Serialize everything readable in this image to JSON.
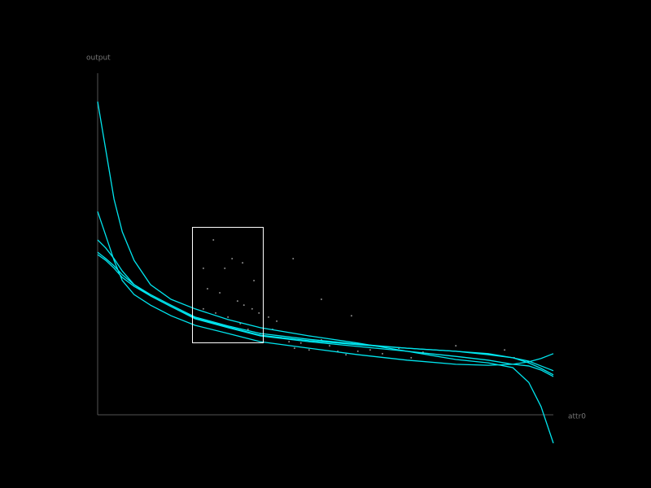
{
  "chart_data": [
    {
      "type": "scatter",
      "x_label": "attr0",
      "y_label": "output",
      "color": "#8a8a8a",
      "xlim": [
        0,
        1
      ],
      "ylim": [
        -0.1,
        1
      ],
      "x": [
        0.254,
        0.232,
        0.279,
        0.318,
        0.295,
        0.343,
        0.241,
        0.268,
        0.307,
        0.321,
        0.339,
        0.354,
        0.375,
        0.393,
        0.232,
        0.259,
        0.286,
        0.313,
        0.33,
        0.357,
        0.384,
        0.402,
        0.42,
        0.432,
        0.446,
        0.464,
        0.491,
        0.509,
        0.527,
        0.545,
        0.571,
        0.598,
        0.625,
        0.661,
        0.688,
        0.714,
        0.429,
        0.491,
        0.557,
        0.786,
        0.893,
        0.914
      ],
      "values": [
        0.512,
        0.429,
        0.429,
        0.445,
        0.457,
        0.393,
        0.369,
        0.357,
        0.333,
        0.321,
        0.31,
        0.298,
        0.286,
        0.274,
        0.31,
        0.298,
        0.286,
        0.267,
        0.25,
        0.238,
        0.25,
        0.226,
        0.214,
        0.195,
        0.21,
        0.19,
        0.219,
        0.202,
        0.186,
        0.176,
        0.186,
        0.19,
        0.179,
        0.195,
        0.167,
        0.183,
        0.457,
        0.338,
        0.29,
        0.202,
        0.19,
        0.167
      ]
    },
    {
      "type": "line",
      "xlim": [
        0,
        1
      ],
      "ylim": [
        -0.1,
        1
      ],
      "x": [
        0,
        0.018,
        0.036,
        0.054,
        0.08,
        0.116,
        0.161,
        0.214,
        0.286,
        0.357,
        0.464,
        0.571,
        0.679,
        0.786,
        0.857,
        0.911,
        0.946,
        0.973,
        1
      ],
      "series": [
        {
          "color": "#00e5ee",
          "values": [
            0.917,
            0.774,
            0.631,
            0.536,
            0.452,
            0.381,
            0.338,
            0.31,
            0.279,
            0.255,
            0.231,
            0.21,
            0.186,
            0.162,
            0.152,
            0.138,
            0.095,
            0.024,
            -0.083
          ]
        },
        {
          "color": "#00e5ee",
          "values": [
            0.595,
            0.524,
            0.452,
            0.393,
            0.352,
            0.321,
            0.29,
            0.262,
            0.238,
            0.214,
            0.195,
            0.176,
            0.16,
            0.148,
            0.145,
            0.148,
            0.155,
            0.165,
            0.179
          ]
        },
        {
          "color": "#00e5ee",
          "values": [
            0.512,
            0.488,
            0.457,
            0.421,
            0.381,
            0.348,
            0.317,
            0.283,
            0.257,
            0.233,
            0.217,
            0.205,
            0.195,
            0.186,
            0.176,
            0.167,
            0.157,
            0.143,
            0.129
          ]
        },
        {
          "color": "#00e5ee",
          "values": [
            0.476,
            0.457,
            0.436,
            0.41,
            0.381,
            0.352,
            0.321,
            0.286,
            0.26,
            0.238,
            0.221,
            0.207,
            0.195,
            0.186,
            0.179,
            0.167,
            0.152,
            0.136,
            0.117
          ]
        },
        {
          "color": "#00e5ee",
          "values": [
            0.469,
            0.452,
            0.429,
            0.402,
            0.376,
            0.348,
            0.317,
            0.281,
            0.255,
            0.231,
            0.214,
            0.2,
            0.186,
            0.171,
            0.16,
            0.148,
            0.143,
            0.131,
            0.112
          ]
        }
      ]
    }
  ]
}
